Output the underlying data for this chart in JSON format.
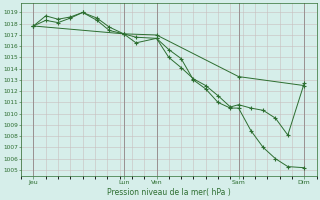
{
  "title": "Pression niveau de la mer( hPa )",
  "ylabel_ticks": [
    1005,
    1006,
    1007,
    1008,
    1009,
    1010,
    1011,
    1012,
    1013,
    1014,
    1015,
    1016,
    1017,
    1018,
    1019
  ],
  "ylim": [
    1004.5,
    1019.8
  ],
  "xlim": [
    0.0,
    7.2
  ],
  "xtick_positions": [
    0.3,
    2.5,
    3.3,
    5.3,
    6.9
  ],
  "xtick_labels": [
    "Jeu",
    "Lun",
    "Ven",
    "Sam",
    "Dim"
  ],
  "vline_positions": [
    0.3,
    2.5,
    3.3,
    5.3,
    6.9
  ],
  "bg_color": "#d6eeea",
  "grid_color": "#c8bebe",
  "line_color": "#2d6e30",
  "marker_color": "#2d6e30",
  "line1": {
    "x": [
      0.3,
      0.6,
      0.9,
      1.2,
      1.5,
      1.85,
      2.15,
      2.5,
      2.8,
      3.3,
      3.6,
      3.9,
      4.2,
      4.5,
      4.8,
      5.1,
      5.3,
      5.6,
      5.9,
      6.2,
      6.5,
      6.9
    ],
    "y": [
      1017.8,
      1018.7,
      1018.4,
      1018.6,
      1019.0,
      1018.3,
      1017.4,
      1017.1,
      1016.8,
      1016.7,
      1015.7,
      1014.9,
      1013.0,
      1012.2,
      1011.0,
      1010.5,
      1010.5,
      1008.5,
      1007.0,
      1006.0,
      1005.3,
      1005.2
    ]
  },
  "line2": {
    "x": [
      0.3,
      0.6,
      0.9,
      1.2,
      1.5,
      1.85,
      2.15,
      2.5,
      2.8,
      3.3,
      3.6,
      3.9,
      4.2,
      4.5,
      4.8,
      5.1,
      5.3,
      5.6,
      5.9,
      6.2,
      6.5,
      6.9
    ],
    "y": [
      1017.8,
      1018.3,
      1018.1,
      1018.5,
      1019.0,
      1018.5,
      1017.7,
      1017.1,
      1016.3,
      1016.7,
      1015.0,
      1014.1,
      1013.1,
      1012.5,
      1011.6,
      1010.6,
      1010.8,
      1010.5,
      1010.3,
      1009.6,
      1008.1,
      1012.7
    ]
  },
  "line3": {
    "x": [
      0.3,
      2.5,
      3.3,
      5.3,
      6.9
    ],
    "y": [
      1017.8,
      1017.1,
      1017.0,
      1013.3,
      1012.5
    ]
  }
}
